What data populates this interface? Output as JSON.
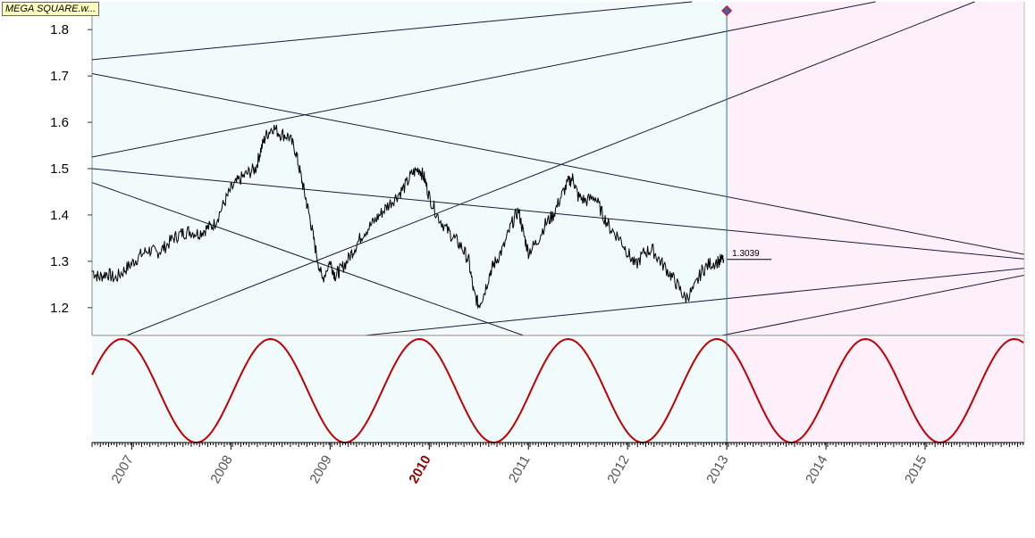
{
  "badge": {
    "label": "MEGA SQUARE.w..."
  },
  "chart_data": {
    "type": "line",
    "price": {
      "ylim": [
        1.14,
        1.86
      ],
      "yticks": [
        {
          "value": 1.2,
          "label": "1.2"
        },
        {
          "value": 1.3,
          "label": "1.3"
        },
        {
          "value": 1.4,
          "label": "1.4"
        },
        {
          "value": 1.5,
          "label": "1.5"
        },
        {
          "value": 1.6,
          "label": "1.6"
        },
        {
          "value": 1.7,
          "label": "1.7"
        },
        {
          "value": 1.8,
          "label": "1.8"
        }
      ],
      "last_value_label": "1.3039",
      "series": [
        [
          2006.6,
          1.28
        ],
        [
          2006.67,
          1.265
        ],
        [
          2006.75,
          1.275
        ],
        [
          2006.83,
          1.262
        ],
        [
          2006.92,
          1.28
        ],
        [
          2007.0,
          1.295
        ],
        [
          2007.08,
          1.312
        ],
        [
          2007.17,
          1.325
        ],
        [
          2007.25,
          1.318
        ],
        [
          2007.33,
          1.33
        ],
        [
          2007.42,
          1.35
        ],
        [
          2007.5,
          1.36
        ],
        [
          2007.58,
          1.365
        ],
        [
          2007.67,
          1.36
        ],
        [
          2007.75,
          1.37
        ],
        [
          2007.83,
          1.38
        ],
        [
          2007.92,
          1.42
        ],
        [
          2008.0,
          1.455
        ],
        [
          2008.08,
          1.475
        ],
        [
          2008.17,
          1.49
        ],
        [
          2008.25,
          1.5
        ],
        [
          2008.3,
          1.54
        ],
        [
          2008.35,
          1.57
        ],
        [
          2008.42,
          1.59
        ],
        [
          2008.5,
          1.575
        ],
        [
          2008.58,
          1.57
        ],
        [
          2008.65,
          1.54
        ],
        [
          2008.7,
          1.49
        ],
        [
          2008.75,
          1.44
        ],
        [
          2008.8,
          1.39
        ],
        [
          2008.85,
          1.33
        ],
        [
          2008.92,
          1.26
        ],
        [
          2009.0,
          1.3
        ],
        [
          2009.05,
          1.27
        ],
        [
          2009.1,
          1.28
        ],
        [
          2009.17,
          1.3
        ],
        [
          2009.25,
          1.33
        ],
        [
          2009.33,
          1.36
        ],
        [
          2009.42,
          1.38
        ],
        [
          2009.5,
          1.4
        ],
        [
          2009.58,
          1.42
        ],
        [
          2009.67,
          1.44
        ],
        [
          2009.75,
          1.46
        ],
        [
          2009.83,
          1.49
        ],
        [
          2009.9,
          1.5
        ],
        [
          2009.95,
          1.48
        ],
        [
          2010.0,
          1.44
        ],
        [
          2010.08,
          1.4
        ],
        [
          2010.17,
          1.37
        ],
        [
          2010.25,
          1.35
        ],
        [
          2010.33,
          1.33
        ],
        [
          2010.4,
          1.3
        ],
        [
          2010.45,
          1.23
        ],
        [
          2010.5,
          1.205
        ],
        [
          2010.55,
          1.23
        ],
        [
          2010.62,
          1.28
        ],
        [
          2010.67,
          1.3
        ],
        [
          2010.75,
          1.33
        ],
        [
          2010.83,
          1.38
        ],
        [
          2010.9,
          1.41
        ],
        [
          2010.95,
          1.36
        ],
        [
          2011.0,
          1.32
        ],
        [
          2011.08,
          1.34
        ],
        [
          2011.17,
          1.38
        ],
        [
          2011.25,
          1.4
        ],
        [
          2011.33,
          1.44
        ],
        [
          2011.4,
          1.47
        ],
        [
          2011.45,
          1.48
        ],
        [
          2011.5,
          1.44
        ],
        [
          2011.58,
          1.43
        ],
        [
          2011.67,
          1.44
        ],
        [
          2011.75,
          1.4
        ],
        [
          2011.83,
          1.37
        ],
        [
          2011.92,
          1.35
        ],
        [
          2012.0,
          1.32
        ],
        [
          2012.08,
          1.29
        ],
        [
          2012.17,
          1.32
        ],
        [
          2012.25,
          1.325
        ],
        [
          2012.33,
          1.3
        ],
        [
          2012.42,
          1.275
        ],
        [
          2012.5,
          1.25
        ],
        [
          2012.58,
          1.22
        ],
        [
          2012.67,
          1.24
        ],
        [
          2012.75,
          1.28
        ],
        [
          2012.83,
          1.295
        ],
        [
          2012.92,
          1.3
        ],
        [
          2012.97,
          1.304
        ]
      ]
    },
    "oscillator": {
      "period_years": 1.5,
      "peak_year": 2006.9
    },
    "x_axis": {
      "xlim": [
        2006.6,
        2016.0
      ],
      "tick_labels": [
        {
          "year": 2007,
          "label": "2007",
          "highlight": false
        },
        {
          "year": 2008,
          "label": "2008",
          "highlight": false
        },
        {
          "year": 2009,
          "label": "2009",
          "highlight": false
        },
        {
          "year": 2010,
          "label": "2010",
          "highlight": true
        },
        {
          "year": 2011,
          "label": "2011",
          "highlight": false
        },
        {
          "year": 2012,
          "label": "2012",
          "highlight": false
        },
        {
          "year": 2013,
          "label": "2013",
          "highlight": false
        },
        {
          "year": 2014,
          "label": "2014",
          "highlight": false
        },
        {
          "year": 2015,
          "label": "2015",
          "highlight": false
        }
      ]
    },
    "current_date": 2013.0,
    "trendlines": [
      {
        "x1": 2006.6,
        "y1": 1.735,
        "x2": 2012.65,
        "y2": 1.86
      },
      {
        "x1": 2006.6,
        "y1": 1.525,
        "x2": 2014.5,
        "y2": 1.86
      },
      {
        "x1": 2006.95,
        "y1": 1.14,
        "x2": 2015.5,
        "y2": 1.86
      },
      {
        "x1": 2006.6,
        "y1": 1.705,
        "x2": 2016.0,
        "y2": 1.315
      },
      {
        "x1": 2006.6,
        "y1": 1.5,
        "x2": 2016.0,
        "y2": 1.305
      },
      {
        "x1": 2006.6,
        "y1": 1.47,
        "x2": 2010.95,
        "y2": 1.14
      },
      {
        "x1": 2009.35,
        "y1": 1.14,
        "x2": 2016.0,
        "y2": 1.285
      },
      {
        "x1": 2012.95,
        "y1": 1.14,
        "x2": 2016.0,
        "y2": 1.27
      }
    ],
    "colors": {
      "past_bg": "#f2fbfb",
      "future_bg": "#fdf0fb",
      "price_line": "#000000",
      "oscillator": "#c00000",
      "marker_line": "#2a7a8a",
      "axis_text": "#555555",
      "highlight_text": "#8b0000"
    }
  }
}
